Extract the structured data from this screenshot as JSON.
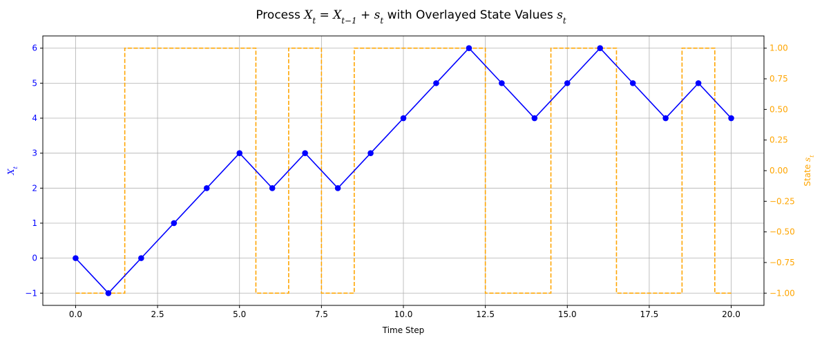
{
  "chart_data": {
    "type": "line",
    "title": {
      "prefix": "Process ",
      "equation": "X_t = X_{t-1} + s_t",
      "middle": " with Overlayed State Values ",
      "state_symbol": "s_t"
    },
    "xlabel": "Time Step",
    "ylabel_left": "X_t",
    "ylabel_right_prefix": "State ",
    "ylabel_right_symbol": "s_t",
    "xlim": [
      -1,
      21
    ],
    "ylim_left": [
      -1.35,
      6.35
    ],
    "ylim_right": [
      -1.1,
      1.1
    ],
    "x_ticks": [
      0.0,
      2.5,
      5.0,
      7.5,
      10.0,
      12.5,
      15.0,
      17.5,
      20.0
    ],
    "x_tick_labels": [
      "0.0",
      "2.5",
      "5.0",
      "7.5",
      "10.0",
      "12.5",
      "15.0",
      "17.5",
      "20.0"
    ],
    "y_left_ticks": [
      -1,
      0,
      1,
      2,
      3,
      4,
      5,
      6
    ],
    "y_left_tick_labels": [
      "−1",
      "0",
      "1",
      "2",
      "3",
      "4",
      "5",
      "6"
    ],
    "y_right_ticks": [
      -1.0,
      -0.75,
      -0.5,
      -0.25,
      0.0,
      0.25,
      0.5,
      0.75,
      1.0
    ],
    "y_right_tick_labels": [
      "−1.00",
      "−0.75",
      "−0.50",
      "−0.25",
      "0.00",
      "0.25",
      "0.50",
      "0.75",
      "1.00"
    ],
    "grid": true,
    "series": [
      {
        "key": "process",
        "axis": "left",
        "style": "line-markers",
        "color": "#0000ff",
        "x": [
          0,
          1,
          2,
          3,
          4,
          5,
          6,
          7,
          8,
          9,
          10,
          11,
          12,
          13,
          14,
          15,
          16,
          17,
          18,
          19,
          20
        ],
        "values": [
          0,
          -1,
          0,
          1,
          2,
          3,
          2,
          3,
          2,
          3,
          4,
          5,
          6,
          5,
          4,
          5,
          6,
          5,
          4,
          5,
          4
        ]
      },
      {
        "key": "state",
        "axis": "right",
        "style": "dashed-step-mid",
        "color": "#ffa500",
        "x": [
          0,
          1,
          2,
          3,
          4,
          5,
          6,
          7,
          8,
          9,
          10,
          11,
          12,
          13,
          14,
          15,
          16,
          17,
          18,
          19,
          20
        ],
        "values": [
          -1,
          -1,
          1,
          1,
          1,
          1,
          -1,
          1,
          -1,
          1,
          1,
          1,
          1,
          -1,
          -1,
          1,
          1,
          -1,
          -1,
          1,
          -1
        ]
      }
    ]
  }
}
